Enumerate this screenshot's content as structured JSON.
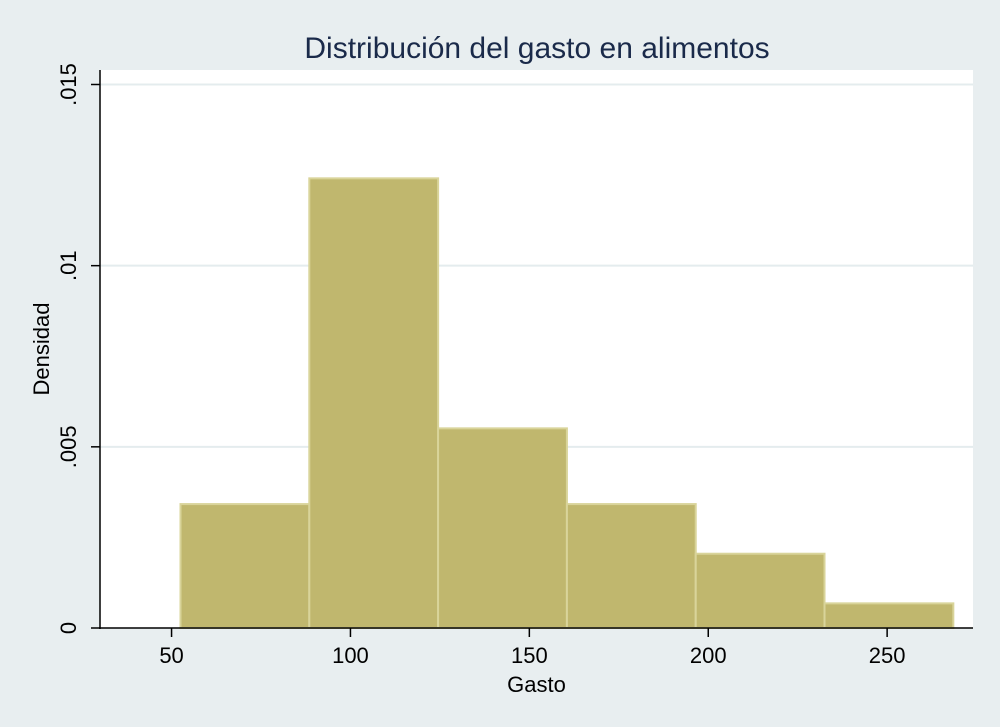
{
  "chart_data": {
    "type": "bar",
    "title": "Distribución del gasto en alimentos",
    "xlabel": "Gasto",
    "ylabel": "Densidad",
    "bins": [
      {
        "start": 52.5,
        "end": 88.5,
        "density": 0.00342
      },
      {
        "start": 88.5,
        "end": 124.5,
        "density": 0.01241
      },
      {
        "start": 124.5,
        "end": 160.5,
        "density": 0.00551
      },
      {
        "start": 160.5,
        "end": 196.5,
        "density": 0.00342
      },
      {
        "start": 196.5,
        "end": 232.5,
        "density": 0.00205
      },
      {
        "start": 232.5,
        "end": 268.5,
        "density": 0.00068
      }
    ],
    "xlim": [
      30,
      274
    ],
    "ylim": [
      0,
      0.0154
    ],
    "xticks": [
      50,
      100,
      150,
      200,
      250
    ],
    "xtick_labels": [
      "50",
      "100",
      "150",
      "200",
      "250"
    ],
    "yticks": [
      0,
      0.005,
      0.01,
      0.015
    ],
    "ytick_labels": [
      "0",
      ".005",
      ".01",
      ".015"
    ],
    "grid": "horizontal",
    "colors": {
      "background": "#e8eef0",
      "plot_background": "#ffffff",
      "bar_fill": "#c0b76e",
      "bar_edge": "#d9d49a",
      "grid": "#e4ecee",
      "title": "#1a2a4a"
    }
  }
}
